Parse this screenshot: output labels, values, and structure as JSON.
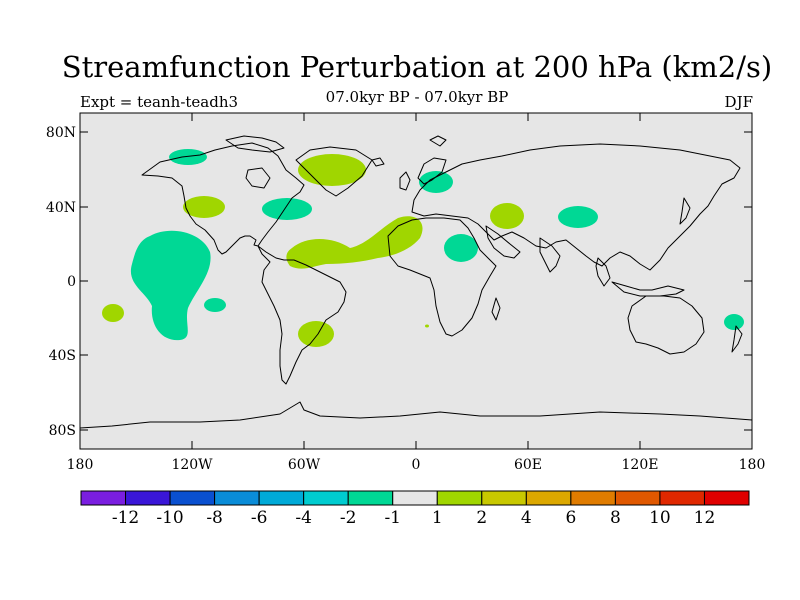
{
  "title": "Streamfunction Perturbation at 200 hPa (km2/s)",
  "subtitle": "07.0kyr BP - 07.0kyr BP",
  "expt_label": "Expt = teanh-teadh3",
  "season": "DJF",
  "colors": {
    "ocean": "#e6e6e6",
    "positive_fill": "#a0d600",
    "negative_fill": "#00d895",
    "coast": "#000000"
  },
  "lat_ticks": [
    "80N",
    "40N",
    "0",
    "40S",
    "80S"
  ],
  "lon_ticks": [
    "180",
    "120W",
    "60W",
    "0",
    "60E",
    "120E",
    "180"
  ],
  "colorbar": {
    "colors": [
      "#7a1ee0",
      "#3a16d8",
      "#0a50d0",
      "#0a8cd8",
      "#00aad8",
      "#00ccd0",
      "#00d895",
      "#e6e6e6",
      "#a0d600",
      "#c8c800",
      "#dca800",
      "#e07c00",
      "#e05800",
      "#e02800",
      "#e00000"
    ],
    "labels": [
      "-12",
      "-10",
      "-8",
      "-6",
      "-4",
      "-2",
      "-1",
      "1",
      "2",
      "4",
      "6",
      "8",
      "10",
      "12"
    ]
  }
}
